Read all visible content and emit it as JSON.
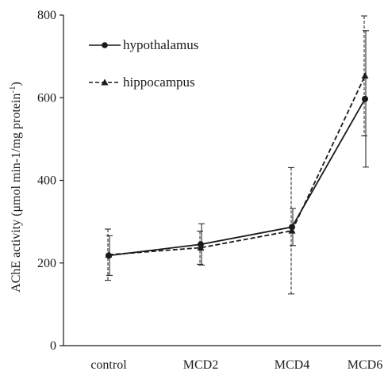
{
  "chart_data": {
    "type": "line",
    "categories": [
      "control",
      "MCD2",
      "MCD4",
      "MCD6"
    ],
    "ylim": [
      0,
      800
    ],
    "yticks": [
      0,
      200,
      400,
      600,
      800
    ],
    "ylabel_main": "AChE activity (μmol min-1/mg protein",
    "ylabel_sup": "-1",
    "ylabel_close": ")",
    "xlabel": "",
    "grid": false,
    "legend_position": "top-left",
    "series": [
      {
        "name": "hypothalamus",
        "values": [
          218,
          245,
          287,
          597
        ],
        "errors": [
          48,
          50,
          45,
          165
        ],
        "line_style": "solid",
        "marker": "circle",
        "color": "#1a1a1a"
      },
      {
        "name": "hippocampus",
        "values": [
          220,
          237,
          278,
          653
        ],
        "errors": [
          62,
          40,
          153,
          145
        ],
        "line_style": "dashed",
        "marker": "triangle",
        "color": "#1a1a1a"
      }
    ]
  }
}
